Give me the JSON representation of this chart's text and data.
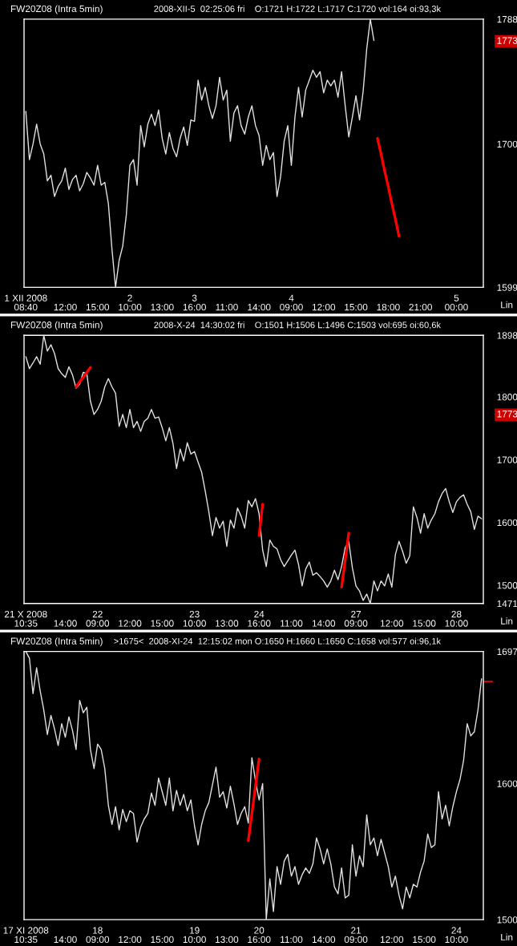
{
  "chart_data": [
    {
      "type": "line",
      "title": "FW20Z08 (Intra 5min)",
      "subtitle": "2008-XII-5  02:25:06 fri    O:1721 H:1722 L:1717 C:1720 vol:164 oi:93,3k",
      "annotations": [
        "Lin"
      ],
      "categories": [
        "1 XII 2008\n08:40",
        null,
        null,
        null,
        null,
        null,
        null,
        null,
        null,
        null,
        null,
        "12:00",
        null,
        null,
        null,
        null,
        null,
        null,
        null,
        null,
        "15:00",
        null,
        null,
        null,
        null,
        null,
        null,
        null,
        null,
        "2\n10:00",
        null,
        null,
        null,
        null,
        null,
        null,
        null,
        null,
        "13:00",
        null,
        null,
        null,
        null,
        null,
        null,
        null,
        null,
        "3\n16:00",
        null,
        null,
        null,
        null,
        null,
        null,
        null,
        null,
        "11:00",
        null,
        null,
        null,
        null,
        null,
        null,
        null,
        null,
        "14:00",
        null,
        null,
        null,
        null,
        null,
        null,
        null,
        null,
        "4\n09:00",
        null,
        null,
        null,
        null,
        null,
        null,
        null,
        null,
        "12:00",
        null,
        null,
        null,
        null,
        null,
        null,
        null,
        null,
        "15:00",
        null,
        null,
        null,
        null,
        null,
        null,
        null,
        null,
        "18:00",
        null,
        null,
        null,
        null,
        null,
        null,
        null,
        null,
        "21:00",
        null,
        null,
        null,
        null,
        null,
        null,
        null,
        null,
        null,
        "5\n00:00",
        null,
        null,
        null,
        null,
        null,
        null,
        null
      ],
      "series": [
        {
          "color": "#e0e0e0",
          "values": [
            1723,
            1689,
            1700,
            1714,
            1700,
            1693,
            1674,
            1678,
            1663,
            1670,
            1674,
            1683,
            1668,
            1675,
            1678,
            1667,
            1672,
            1680,
            1676,
            1671,
            1685,
            1671,
            1673,
            1658,
            1626,
            1599,
            1618,
            1628,
            1650,
            1685,
            1689,
            1671,
            1713,
            1698,
            1714,
            1721,
            1713,
            1724,
            1704,
            1693,
            1708,
            1697,
            1691,
            1704,
            1712,
            1699,
            1717,
            1716,
            1745,
            1731,
            1740,
            1727,
            1718,
            1727,
            1747,
            1731,
            1738,
            1702,
            1722,
            1727,
            1713,
            1707,
            1719,
            1727,
            1713,
            1706,
            1685,
            1699,
            1689,
            1694,
            1663,
            1677,
            1702,
            1713,
            1685,
            1719,
            1740,
            1719,
            1738,
            1745,
            1752,
            1747,
            1751,
            1736,
            1745,
            1741,
            1745,
            1733,
            1751,
            1727,
            1705,
            1719,
            1734,
            1717,
            1737,
            1767,
            1788,
            1773,
            null,
            null,
            null,
            null,
            null,
            null,
            null,
            null,
            null,
            null,
            null,
            null,
            null,
            null,
            null,
            null,
            null,
            null,
            null,
            null,
            null,
            null,
            null,
            null,
            null,
            null,
            null,
            null,
            null,
            null
          ]
        },
        {
          "color": "#ff0000",
          "values": [
            null,
            null,
            null,
            null,
            null,
            null,
            null,
            null,
            null,
            null,
            null,
            null,
            null,
            null,
            null,
            null,
            null,
            null,
            null,
            null,
            null,
            null,
            null,
            null,
            null,
            null,
            null,
            null,
            null,
            null,
            null,
            null,
            null,
            null,
            null,
            null,
            null,
            null,
            null,
            null,
            null,
            null,
            null,
            null,
            null,
            null,
            null,
            null,
            null,
            null,
            null,
            null,
            null,
            null,
            null,
            null,
            null,
            null,
            null,
            null,
            null,
            null,
            null,
            null,
            null,
            null,
            null,
            null,
            null,
            null,
            null,
            null,
            null,
            null,
            null,
            null,
            null,
            null,
            null,
            null,
            null,
            null,
            null,
            null,
            null,
            null,
            null,
            null,
            null,
            null,
            null,
            null,
            null,
            null,
            null,
            null,
            null,
            null,
            1704,
            1693,
            1681,
            1670,
            1658,
            1647,
            1635,
            null,
            null,
            null,
            null,
            null,
            null,
            null,
            null,
            null,
            null,
            null,
            null,
            null,
            null,
            null,
            null,
            null,
            null,
            null,
            null,
            null,
            null,
            null
          ]
        }
      ],
      "ylim": [
        1599,
        1788
      ],
      "yticks": [
        1599,
        1700,
        1773,
        1788
      ]
    },
    {
      "type": "line",
      "title": "FW20Z08 (Intra 5min)",
      "subtitle": "2008-X-24  14:30:02 fri    O:1501 H:1506 L:1496 C:1503 vol:695 oi:60,6k",
      "annotations": [
        "Lin"
      ],
      "categories": [
        "21 X 2008\n10:35",
        null,
        null,
        null,
        null,
        null,
        null,
        null,
        null,
        null,
        null,
        "14:00",
        null,
        null,
        null,
        null,
        null,
        null,
        null,
        null,
        "22\n09:00",
        null,
        null,
        null,
        null,
        null,
        null,
        null,
        null,
        "12:00",
        null,
        null,
        null,
        null,
        null,
        null,
        null,
        null,
        "15:00",
        null,
        null,
        null,
        null,
        null,
        null,
        null,
        null,
        "23\n10:00",
        null,
        null,
        null,
        null,
        null,
        null,
        null,
        null,
        "13:00",
        null,
        null,
        null,
        null,
        null,
        null,
        null,
        null,
        "24\n16:00",
        null,
        null,
        null,
        null,
        null,
        null,
        null,
        null,
        "11:00",
        null,
        null,
        null,
        null,
        null,
        null,
        null,
        null,
        "14:00",
        null,
        null,
        null,
        null,
        null,
        null,
        null,
        null,
        "27\n09:00",
        null,
        null,
        null,
        null,
        null,
        null,
        null,
        null,
        null,
        "12:00",
        null,
        null,
        null,
        null,
        null,
        null,
        null,
        null,
        "15:00",
        null,
        null,
        null,
        null,
        null,
        null,
        null,
        null,
        "28\n10:00",
        null,
        null,
        null,
        null,
        null,
        null,
        null
      ],
      "series": [
        {
          "color": "#e0e0e0",
          "values": [
            1864,
            1845,
            1854,
            1864,
            1852,
            1898,
            1873,
            1883,
            1869,
            1845,
            1837,
            1831,
            1848,
            1835,
            1814,
            1820,
            1839,
            1837,
            1793,
            1772,
            1780,
            1793,
            1816,
            1829,
            1816,
            1806,
            1753,
            1772,
            1751,
            1780,
            1751,
            1761,
            1745,
            1761,
            1766,
            1780,
            1766,
            1768,
            1751,
            1730,
            1751,
            1726,
            1686,
            1717,
            1698,
            1727,
            1709,
            1713,
            1696,
            1680,
            1650,
            1617,
            1579,
            1608,
            1591,
            1602,
            1562,
            1604,
            1591,
            1623,
            1610,
            1591,
            1635,
            1625,
            1638,
            1614,
            1556,
            1530,
            1572,
            1562,
            1558,
            1541,
            1530,
            1539,
            1548,
            1556,
            1533,
            1499,
            1526,
            1537,
            1516,
            1520,
            1514,
            1507,
            1497,
            1507,
            1524,
            1509,
            1530,
            1560,
            1570,
            1528,
            1499,
            1491,
            1476,
            1486,
            1471,
            1507,
            1491,
            1507,
            1499,
            1518,
            1497,
            1549,
            1570,
            1554,
            1535,
            1547,
            1625,
            1608,
            1583,
            1614,
            1591,
            1604,
            1614,
            1633,
            1646,
            1654,
            1633,
            1616,
            1633,
            1640,
            1644,
            1629,
            1617,
            1589,
            1610,
            1606
          ]
        },
        {
          "color": "#ff0000",
          "values": [
            null,
            null,
            null,
            null,
            null,
            null,
            null,
            null,
            null,
            null,
            null,
            null,
            null,
            null,
            1816,
            1824,
            1831,
            1839,
            1847,
            null,
            null,
            null,
            null,
            null,
            null,
            null,
            null,
            null,
            null,
            null,
            null,
            null,
            null,
            null,
            null,
            null,
            null,
            null,
            null,
            null,
            null,
            null,
            null,
            null,
            null,
            null,
            null,
            null,
            null,
            null,
            null,
            null,
            null,
            null,
            null,
            null,
            null,
            null,
            null,
            null,
            null,
            null,
            null,
            null,
            null,
            1579,
            1629,
            null,
            null,
            null,
            null,
            null,
            null,
            null,
            null,
            null,
            null,
            null,
            null,
            null,
            null,
            null,
            null,
            null,
            null,
            null,
            null,
            null,
            1497,
            1540,
            1583,
            null,
            null,
            null,
            null,
            null,
            null,
            null,
            null,
            null,
            null,
            null,
            null,
            null,
            null,
            null,
            null,
            null,
            null,
            null,
            null,
            null,
            null,
            null,
            null,
            null,
            null,
            null,
            null,
            null,
            null,
            null,
            null,
            null,
            null,
            null,
            null,
            null
          ]
        }
      ],
      "ylim": [
        1471,
        1898
      ],
      "yticks": [
        1471,
        1500,
        1600,
        1700,
        1773,
        1800,
        1898
      ]
    },
    {
      "type": "line",
      "title": "FW20Z08 (Intra 5min)",
      "subtitle": ">1675<  2008-XI-24  12:15:02 mon O:1650 H:1660 L:1650 C:1658 vol:577 oi:96,1k",
      "annotations": [
        "Lin"
      ],
      "categories": [
        "17 XI 2008\n10:35",
        null,
        null,
        null,
        null,
        null,
        null,
        null,
        null,
        null,
        null,
        "14:00",
        null,
        null,
        null,
        null,
        null,
        null,
        null,
        null,
        "18\n09:00",
        null,
        null,
        null,
        null,
        null,
        null,
        null,
        null,
        "12:00",
        null,
        null,
        null,
        null,
        null,
        null,
        null,
        null,
        "15:00",
        null,
        null,
        null,
        null,
        null,
        null,
        null,
        null,
        "19\n10:00",
        null,
        null,
        null,
        null,
        null,
        null,
        null,
        null,
        "13:00",
        null,
        null,
        null,
        null,
        null,
        null,
        null,
        null,
        "20\n16:00",
        null,
        null,
        null,
        null,
        null,
        null,
        null,
        null,
        "11:00",
        null,
        null,
        null,
        null,
        null,
        null,
        null,
        null,
        "14:00",
        null,
        null,
        null,
        null,
        null,
        null,
        null,
        null,
        "21\n09:00",
        null,
        null,
        null,
        null,
        null,
        null,
        null,
        null,
        null,
        "12:00",
        null,
        null,
        null,
        null,
        null,
        null,
        null,
        null,
        "15:00",
        null,
        null,
        null,
        null,
        null,
        null,
        null,
        null,
        "24\n10:00",
        null,
        null,
        null,
        null,
        null,
        null,
        null
      ],
      "series": [
        {
          "color": "#e0e0e0",
          "values": [
            1697,
            1692,
            1666,
            1685,
            1668,
            1654,
            1636,
            1650,
            1640,
            1628,
            1644,
            1634,
            1649,
            1639,
            1625,
            1661,
            1652,
            1656,
            1625,
            1611,
            1629,
            1625,
            1611,
            1584,
            1570,
            1583,
            1566,
            1581,
            1572,
            1580,
            1578,
            1557,
            1568,
            1574,
            1578,
            1593,
            1584,
            1604,
            1594,
            1584,
            1604,
            1580,
            1595,
            1584,
            1592,
            1580,
            1588,
            1569,
            1555,
            1570,
            1580,
            1586,
            1599,
            1612,
            1590,
            1594,
            1582,
            1598,
            1585,
            1570,
            1578,
            1583,
            1571,
            1619,
            1602,
            1588,
            1600,
            1500,
            1530,
            1506,
            1539,
            1526,
            1543,
            1548,
            1532,
            1539,
            1526,
            1533,
            1538,
            1534,
            1541,
            1560,
            1552,
            1541,
            1552,
            1541,
            1524,
            1519,
            1538,
            1516,
            1518,
            1555,
            1532,
            1547,
            1539,
            1577,
            1555,
            1560,
            1547,
            1559,
            1549,
            1539,
            1524,
            1532,
            1518,
            1508,
            1524,
            1516,
            1526,
            1524,
            1535,
            1543,
            1563,
            1553,
            1555,
            1594,
            1574,
            1584,
            1569,
            1583,
            1594,
            1603,
            1617,
            1644,
            1635,
            1638,
            1654,
            1677
          ]
        },
        {
          "color": "#ff0000",
          "values": [
            null,
            null,
            null,
            null,
            null,
            null,
            null,
            null,
            null,
            null,
            null,
            null,
            null,
            null,
            null,
            null,
            null,
            null,
            null,
            null,
            null,
            null,
            null,
            null,
            null,
            null,
            null,
            null,
            null,
            null,
            null,
            null,
            null,
            null,
            null,
            null,
            null,
            null,
            null,
            null,
            null,
            null,
            null,
            null,
            null,
            null,
            null,
            null,
            null,
            null,
            null,
            null,
            null,
            null,
            null,
            null,
            null,
            null,
            null,
            null,
            null,
            null,
            1558,
            1578,
            1598,
            1618,
            null,
            null,
            null,
            null,
            null,
            null,
            null,
            null,
            null,
            null,
            null,
            null,
            null,
            null,
            null,
            null,
            null,
            null,
            null,
            null,
            null,
            null,
            null,
            null,
            null,
            null,
            null,
            null,
            null,
            null,
            null,
            null,
            null,
            null,
            null,
            null,
            null,
            null,
            null,
            null,
            null,
            null,
            null,
            null,
            null,
            null,
            null,
            null,
            null,
            null,
            null,
            null,
            null,
            null,
            null,
            null,
            null,
            null,
            null,
            null,
            null,
            null
          ]
        }
      ],
      "ylim": [
        1500,
        1697
      ],
      "yticks": [
        1500,
        1600,
        {
          "value": 1675,
          "label": null
        },
        1697
      ]
    }
  ]
}
